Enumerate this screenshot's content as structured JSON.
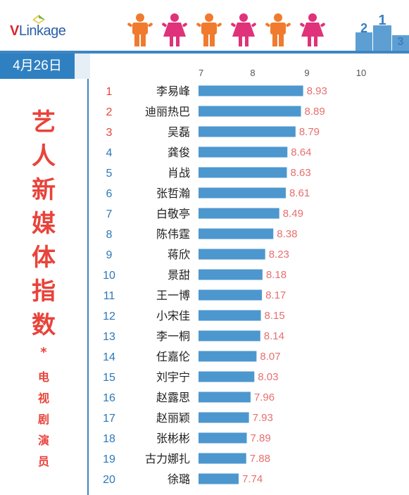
{
  "brand": {
    "prefix": "V",
    "name": "Linkage"
  },
  "date": "4月26日",
  "title_chars": [
    "艺",
    "人",
    "新",
    "媒",
    "体",
    "指",
    "数"
  ],
  "star": "*",
  "subtitle_chars": [
    "电",
    "视",
    "剧",
    "演",
    "员"
  ],
  "colors": {
    "bar": "#4d97cf",
    "rank_top": "#e8433a",
    "rank_other": "#2c78b8",
    "value": "#e76f6f",
    "male": "#f07b2e",
    "female": "#e0327a"
  },
  "icons": [
    "male-icon",
    "female-icon",
    "male-icon",
    "female-icon",
    "male-icon",
    "female-icon",
    "podium-icon"
  ],
  "chart_data": {
    "type": "bar",
    "orientation": "horizontal",
    "xlim": [
      7,
      10
    ],
    "xticks": [
      "7",
      "8",
      "9",
      "10"
    ],
    "ranks": [
      "1",
      "2",
      "3",
      "4",
      "5",
      "6",
      "7",
      "8",
      "9",
      "10",
      "11",
      "12",
      "13",
      "14",
      "15",
      "16",
      "17",
      "18",
      "19",
      "20"
    ],
    "categories": [
      "李易峰",
      "迪丽热巴",
      "吴磊",
      "龚俊",
      "肖战",
      "张哲瀚",
      "白敬亭",
      "陈伟霆",
      "蒋欣",
      "景甜",
      "王一博",
      "小宋佳",
      "李一桐",
      "任嘉伦",
      "刘宇宁",
      "赵露思",
      "赵丽颖",
      "张彬彬",
      "古力娜扎",
      "徐璐"
    ],
    "values": [
      8.93,
      8.89,
      8.79,
      8.64,
      8.63,
      8.61,
      8.49,
      8.38,
      8.23,
      8.18,
      8.17,
      8.15,
      8.14,
      8.07,
      8.03,
      7.96,
      7.93,
      7.89,
      7.88,
      7.74
    ],
    "value_labels": [
      "8.93",
      "8.89",
      "8.79",
      "8.64",
      "8.63",
      "8.61",
      "8.49",
      "8.38",
      "8.23",
      "8.18",
      "8.17",
      "8.15",
      "8.14",
      "8.07",
      "8.03",
      "7.96",
      "7.93",
      "7.89",
      "7.88",
      "7.74"
    ]
  }
}
